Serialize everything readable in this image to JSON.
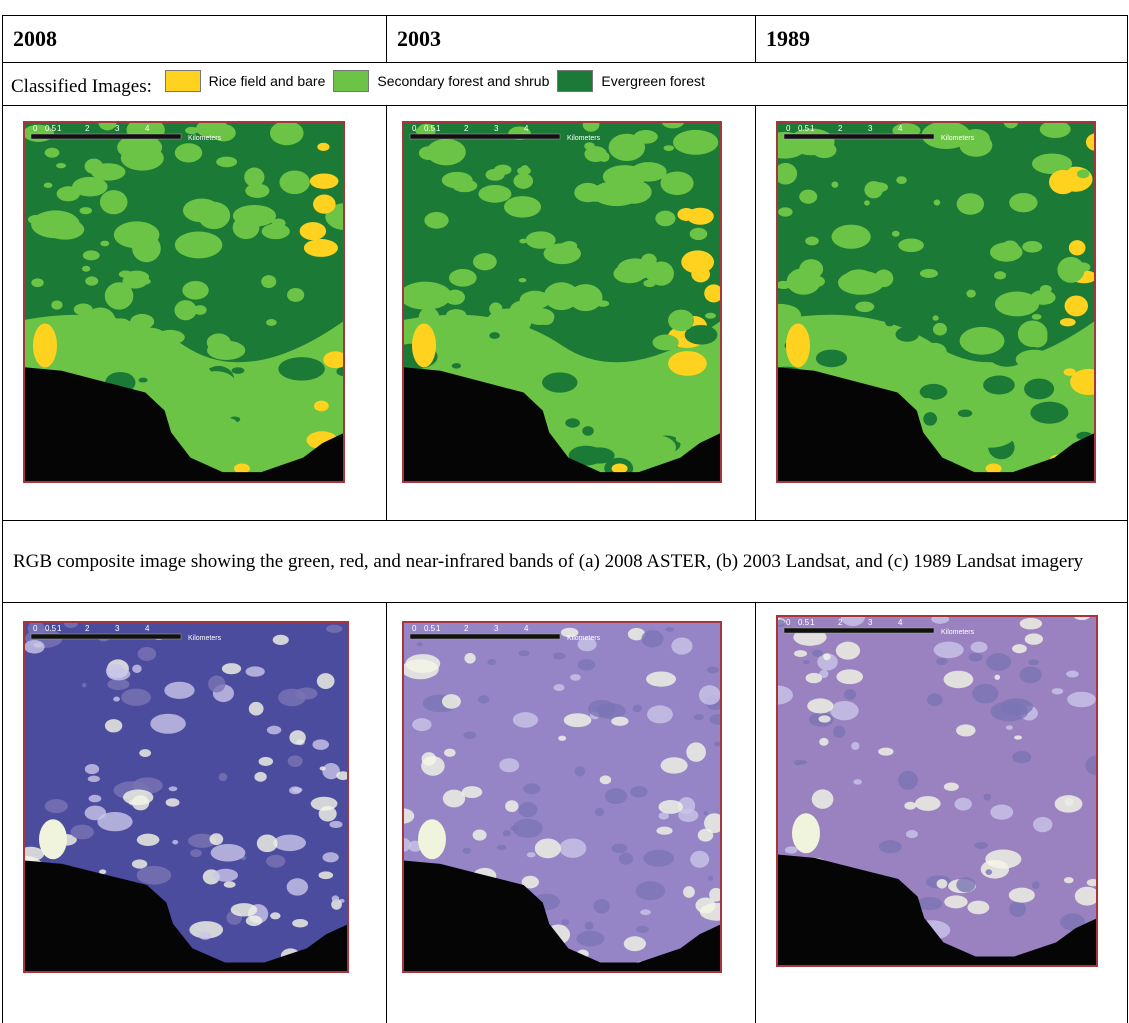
{
  "table": {
    "years": [
      "2008",
      "2003",
      "1989"
    ],
    "legend": {
      "label": "Classified Images:",
      "items": [
        {
          "name": "Rice field and bare",
          "color": "#ffd21f"
        },
        {
          "name": "Secondary forest and shrub",
          "color": "#6cc447"
        },
        {
          "name": "Evergreen forest",
          "color": "#1b7a35"
        }
      ]
    },
    "caption": "RGB composite image showing the green, red, and near-infrared bands of (a) 2008 ASTER, (b) 2003 Landsat, and (c) 1989 Landsat imagery",
    "scale_bar": {
      "labels": [
        "0",
        "0.5",
        "1",
        "2",
        "3",
        "4"
      ],
      "unit": "Kilometers"
    }
  }
}
